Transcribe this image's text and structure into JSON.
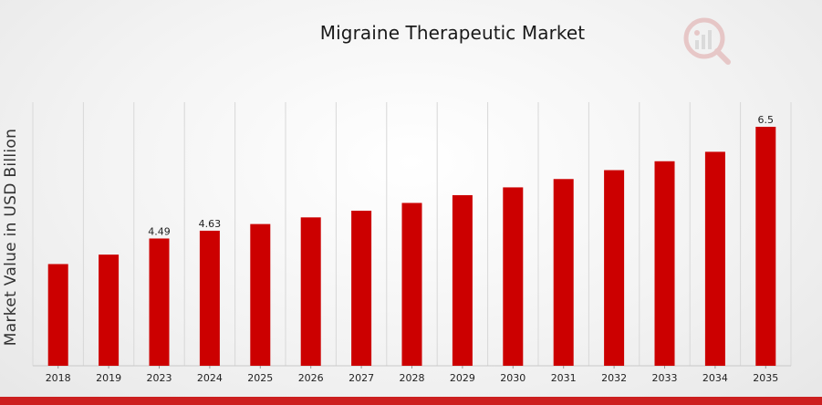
{
  "chart_data": {
    "type": "bar",
    "title": "Migraine Therapeutic Market",
    "xlabel": "",
    "ylabel": "Market Value in USD Billion",
    "categories": [
      "2018",
      "2019",
      "2023",
      "2024",
      "2025",
      "2026",
      "2027",
      "2028",
      "2029",
      "2030",
      "2031",
      "2032",
      "2033",
      "2034",
      "2035"
    ],
    "values": [
      4.03,
      4.2,
      4.49,
      4.63,
      4.75,
      4.87,
      4.99,
      5.13,
      5.27,
      5.41,
      5.56,
      5.72,
      5.88,
      6.05,
      6.5
    ],
    "data_labels": {
      "2023": "4.49",
      "2024": "4.63",
      "2035": "6.5"
    },
    "ylim": [
      0,
      7
    ],
    "grid": "vertical",
    "legend": "none",
    "bar_color": "#cc0000"
  },
  "colors": {
    "accent_bar": "#cc1f1f"
  },
  "icons": {
    "logo": "market-research-logo-icon"
  }
}
